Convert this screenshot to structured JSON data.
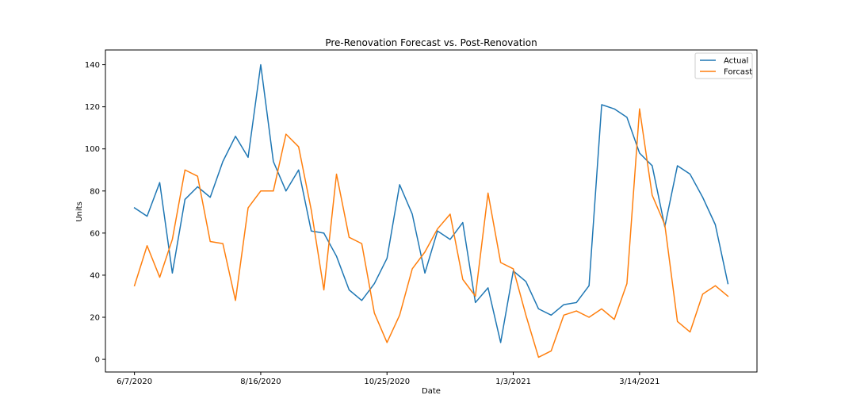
{
  "chart_data": {
    "type": "line",
    "title": "Pre-Renovation Forecast vs. Post-Renovation",
    "xlabel": "Date",
    "ylabel": "Units",
    "x_ticks": [
      "6/7/2020",
      "8/16/2020",
      "10/25/2020",
      "1/3/2021",
      "3/14/2021"
    ],
    "x_tick_index": [
      0,
      10,
      20,
      30,
      40
    ],
    "y_ticks": [
      0,
      20,
      40,
      60,
      80,
      100,
      120,
      140
    ],
    "ylim": [
      -6,
      147
    ],
    "xlim": [
      -2.3,
      49.3
    ],
    "grid": false,
    "legend_position": "top-right",
    "x_start_label": "6/7/2020",
    "x_interval": "weekly",
    "series": [
      {
        "name": "Actual",
        "color": "#1f77b4",
        "values": [
          72,
          68,
          84,
          41,
          76,
          82,
          77,
          94,
          106,
          96,
          140,
          94,
          80,
          90,
          61,
          60,
          49,
          33,
          28,
          36,
          48,
          83,
          69,
          41,
          61,
          57,
          65,
          27,
          34,
          8,
          42,
          37,
          24,
          21,
          26,
          27,
          35,
          121,
          119,
          115,
          98,
          92,
          63,
          92,
          88,
          77,
          64,
          36
        ]
      },
      {
        "name": "Forcast",
        "color": "#ff7f0e",
        "values": [
          35,
          54,
          39,
          57,
          90,
          87,
          56,
          55,
          28,
          72,
          80,
          80,
          107,
          101,
          71,
          33,
          88,
          58,
          55,
          22,
          8,
          21,
          43,
          51,
          62,
          69,
          38,
          30,
          79,
          46,
          43,
          21,
          1,
          4,
          21,
          23,
          20,
          24,
          19,
          36,
          119,
          78,
          64,
          18,
          13,
          31,
          35,
          30
        ]
      }
    ]
  }
}
